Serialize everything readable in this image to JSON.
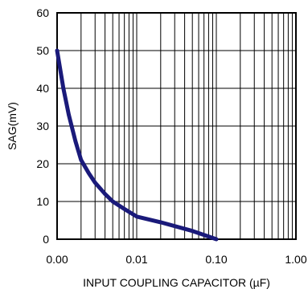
{
  "chart_data": {
    "type": "line",
    "title": "",
    "xlabel": "INPUT COUPLING CAPACITOR (µF)",
    "ylabel": "SAG(mV)",
    "x_scale": "log",
    "xlim": [
      0.001,
      1.0
    ],
    "ylim": [
      0,
      60
    ],
    "x_tick_values": [
      0.001,
      0.01,
      0.1,
      1.0
    ],
    "x_tick_labels": [
      "0.00",
      "0.01",
      "0.10",
      "1.00"
    ],
    "y_ticks": [
      0,
      10,
      20,
      30,
      40,
      50,
      60
    ],
    "grid": true,
    "legend": "none",
    "series": [
      {
        "color": "#1a1a7a",
        "x": [
          0.001,
          0.0012,
          0.0014,
          0.0017,
          0.002,
          0.0025,
          0.003,
          0.004,
          0.005,
          0.007,
          0.01,
          0.02,
          0.05,
          0.1
        ],
        "y": [
          50,
          40,
          33,
          26,
          21,
          17.5,
          15,
          12,
          10,
          8,
          6,
          4.5,
          2.2,
          0
        ]
      }
    ]
  }
}
